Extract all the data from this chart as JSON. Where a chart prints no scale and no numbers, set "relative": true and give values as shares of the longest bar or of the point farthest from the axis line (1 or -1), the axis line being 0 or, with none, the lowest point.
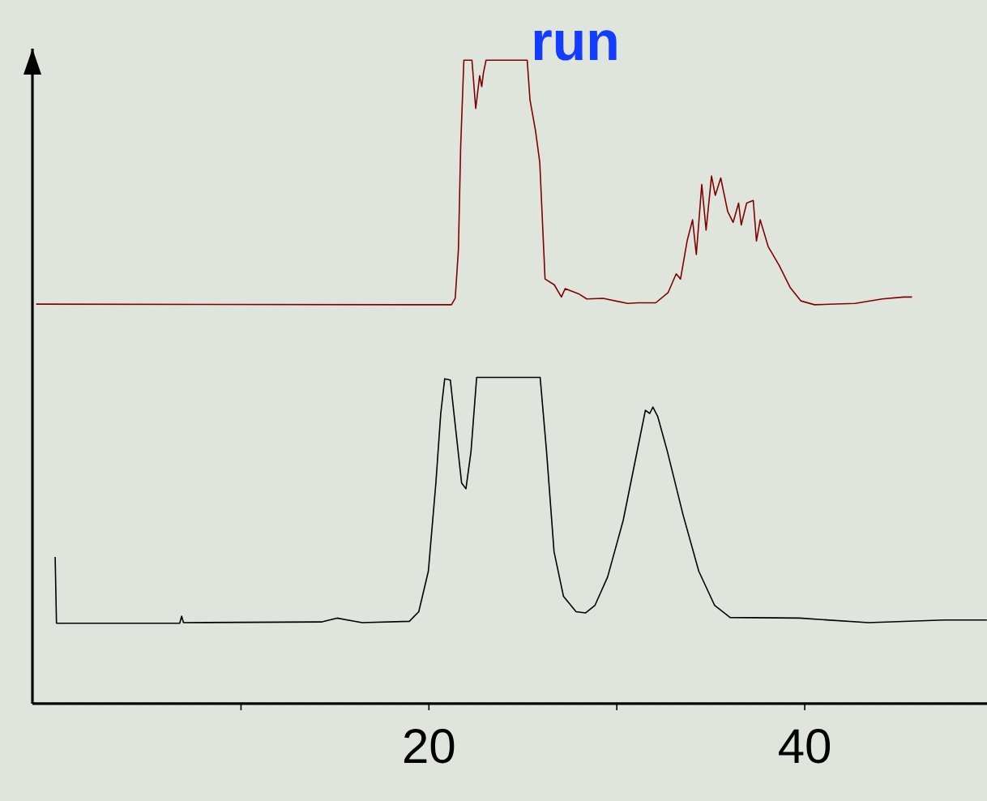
{
  "chart_data": {
    "type": "line",
    "title": "run",
    "relative": true,
    "marker": "none",
    "line_style": "solid",
    "xlim": [
      -1.1,
      49.7
    ],
    "xticks": [
      {
        "value": 10,
        "label": null
      },
      20,
      {
        "value": 30,
        "label": null
      },
      40
    ],
    "tick_labels": "x",
    "series": [
      {
        "color": "#800000",
        "x": [
          -0.9,
          19.61,
          21.2,
          21.4,
          21.57,
          21.69,
          21.86,
          22.29,
          22.49,
          22.7,
          22.81,
          22.9,
          23.04,
          25.23,
          25.38,
          25.67,
          25.9,
          26.18,
          26.67,
          27.05,
          27.25,
          27.97,
          28.4,
          29.27,
          30.57,
          31.14,
          32.07,
          32.73,
          33.16,
          33.39,
          33.74,
          34.03,
          34.23,
          34.52,
          34.75,
          35.04,
          35.24,
          35.53,
          35.9,
          36.19,
          36.48,
          36.62,
          36.91,
          37.26,
          37.43,
          37.63,
          38.06,
          38.64,
          39.22,
          39.79,
          40.52,
          42.68,
          44.12,
          45.27,
          45.71
        ],
        "values": [
          0.621,
          0.62,
          0.62,
          0.63,
          0.706,
          0.866,
          1,
          1,
          0.925,
          0.976,
          0.959,
          0.98,
          1,
          1,
          0.938,
          0.891,
          0.841,
          0.66,
          0.651,
          0.632,
          0.645,
          0.637,
          0.629,
          0.63,
          0.622,
          0.623,
          0.623,
          0.639,
          0.668,
          0.66,
          0.719,
          0.752,
          0.698,
          0.807,
          0.736,
          0.82,
          0.79,
          0.817,
          0.765,
          0.748,
          0.778,
          0.744,
          0.778,
          0.782,
          0.719,
          0.752,
          0.71,
          0.681,
          0.647,
          0.626,
          0.62,
          0.622,
          0.629,
          0.632,
          0.632
        ]
      },
      {
        "color": "#000000",
        "x": [
          0.11,
          0.18,
          6.74,
          6.84,
          6.94,
          14.27,
          15.11,
          16.45,
          18.96,
          19.46,
          19.97,
          20.37,
          20.63,
          20.84,
          21.14,
          21.37,
          21.74,
          21.97,
          22.24,
          22.54,
          25.92,
          26.26,
          26.66,
          27.16,
          27.83,
          28.33,
          28.84,
          29.51,
          30.34,
          31.01,
          31.52,
          31.75,
          31.92,
          32.18,
          32.69,
          33.52,
          34.36,
          35.2,
          36.03,
          39.72,
          43.4,
          47.42,
          49.69
        ],
        "values": [
          0.228,
          0.125,
          0.125,
          0.136,
          0.126,
          0.127,
          0.133,
          0.126,
          0.128,
          0.143,
          0.206,
          0.343,
          0.451,
          0.505,
          0.503,
          0.441,
          0.343,
          0.334,
          0.392,
          0.507,
          0.507,
          0.392,
          0.236,
          0.167,
          0.143,
          0.141,
          0.153,
          0.197,
          0.285,
          0.382,
          0.456,
          0.451,
          0.461,
          0.446,
          0.392,
          0.294,
          0.206,
          0.153,
          0.134,
          0.133,
          0.126,
          0.13,
          0.13
        ]
      }
    ]
  }
}
